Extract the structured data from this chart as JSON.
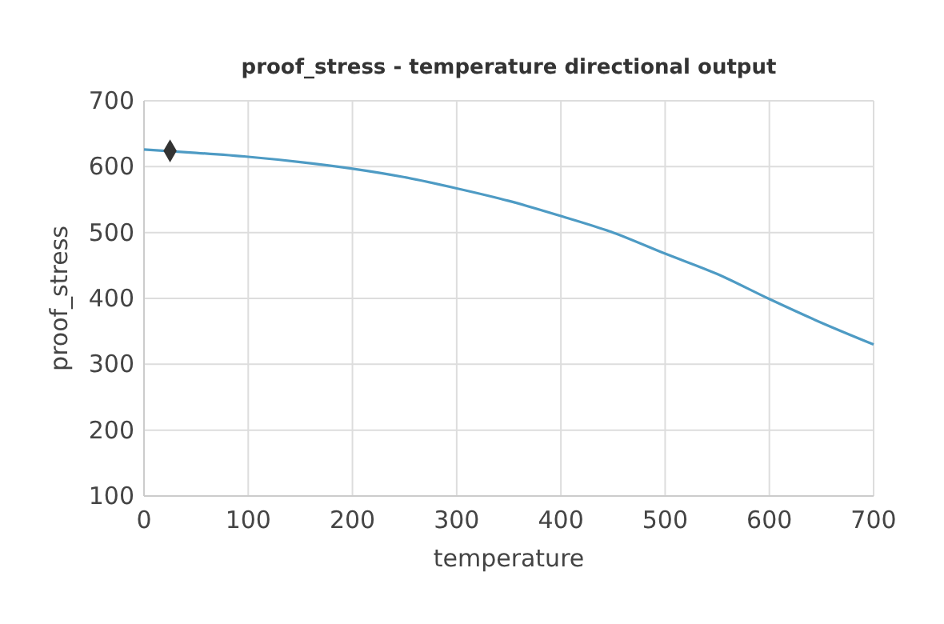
{
  "chart_data": {
    "type": "line",
    "title": "proof_stress - temperature directional output",
    "xlabel": "temperature",
    "ylabel": "proof_stress",
    "xlim": [
      0,
      700
    ],
    "ylim": [
      100,
      700
    ],
    "xticks": [
      0,
      100,
      200,
      300,
      400,
      500,
      600,
      700
    ],
    "yticks": [
      100,
      200,
      300,
      400,
      500,
      600,
      700
    ],
    "grid": true,
    "series": [
      {
        "color": "#4e9bc4",
        "x": [
          0,
          50,
          100,
          150,
          200,
          250,
          300,
          350,
          400,
          450,
          500,
          550,
          600,
          650,
          700
        ],
        "values": [
          626,
          621,
          615,
          607,
          597,
          584,
          567,
          548,
          525,
          500,
          468,
          437,
          399,
          363,
          330
        ]
      },
      {
        "type": "scatter",
        "color": "#333333",
        "marker": "diamond",
        "x": [
          25
        ],
        "values": [
          624
        ]
      }
    ]
  }
}
